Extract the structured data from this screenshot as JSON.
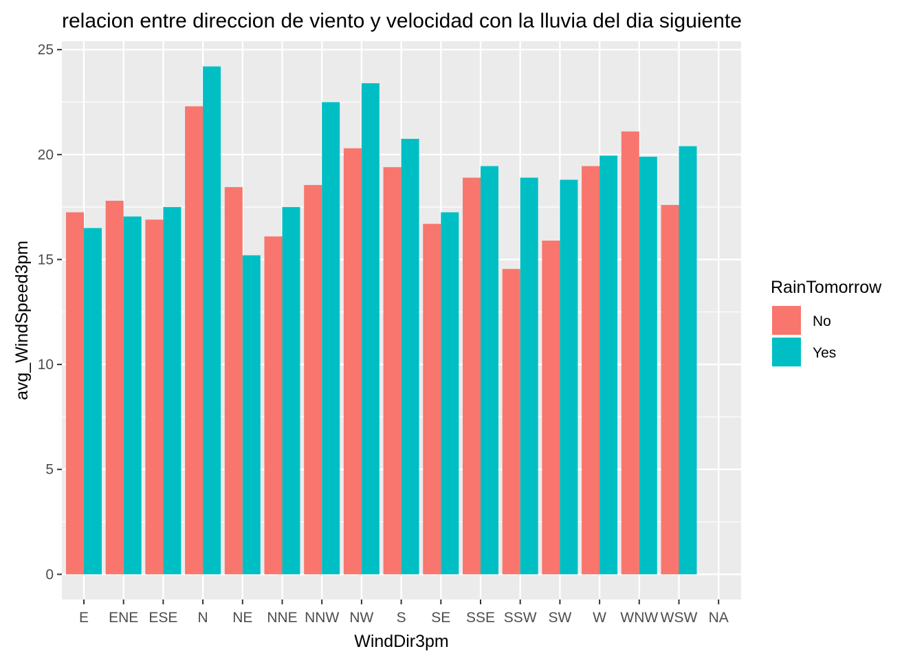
{
  "chart_data": {
    "type": "bar",
    "title": "relacion entre direccion de viento y velocidad con la lluvia del dia siguiente",
    "xlabel": "WindDir3pm",
    "ylabel": "avg_WindSpeed3pm",
    "categories": [
      "E",
      "ENE",
      "ESE",
      "N",
      "NE",
      "NNE",
      "NNW",
      "NW",
      "S",
      "SE",
      "SSE",
      "SSW",
      "SW",
      "W",
      "WNW",
      "WSW",
      "NA"
    ],
    "series": [
      {
        "name": "No",
        "color": "#f8766d",
        "values": [
          17.25,
          17.8,
          16.9,
          22.3,
          18.45,
          16.1,
          18.55,
          20.3,
          19.4,
          16.7,
          18.9,
          14.55,
          15.9,
          19.45,
          21.1,
          17.6,
          null
        ]
      },
      {
        "name": "Yes",
        "color": "#00bfc4",
        "values": [
          16.5,
          17.05,
          17.5,
          24.2,
          15.2,
          17.5,
          22.5,
          23.4,
          20.75,
          17.25,
          19.45,
          18.9,
          18.8,
          19.95,
          19.9,
          20.4,
          null
        ]
      }
    ],
    "yticks": [
      "0",
      "5",
      "10",
      "15",
      "20",
      "25"
    ],
    "ylim": [
      -1.2,
      25.4
    ],
    "grid": true,
    "legend": {
      "title": "RainTomorrow",
      "position": "right"
    },
    "colors": {
      "panel": "#ebebeb",
      "grid": "#ffffff",
      "tick": "#4d4d4d"
    }
  }
}
